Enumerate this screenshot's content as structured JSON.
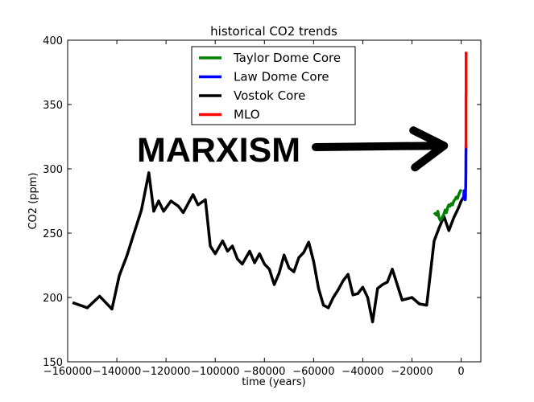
{
  "chart_data": {
    "type": "line",
    "title": "historical CO2 trends",
    "xlabel": "time (years)",
    "ylabel": "CO2 (ppm)",
    "xlim": [
      -160000,
      8000
    ],
    "ylim": [
      150,
      400
    ],
    "xticks": [
      -160000,
      -140000,
      -120000,
      -100000,
      -80000,
      -60000,
      -40000,
      -20000,
      0
    ],
    "xtick_labels": [
      "−160000",
      "−140000",
      "−120000",
      "−100000",
      "−80000",
      "−60000",
      "−40000",
      "−20000",
      "0"
    ],
    "yticks": [
      150,
      200,
      250,
      300,
      350,
      400
    ],
    "ytick_labels": [
      "150",
      "200",
      "250",
      "300",
      "350",
      "400"
    ],
    "grid": false,
    "legend_position": "top-center",
    "series": [
      {
        "name": "Taylor Dome Core",
        "color": "#008000",
        "x": [
          -11000,
          -10000,
          -9500,
          -9000,
          -8500,
          -8000,
          -7500,
          -7000,
          -6500,
          -6000,
          -5500,
          -5000,
          -4500,
          -4000,
          -3500,
          -3000,
          -2500,
          -2000,
          -1500,
          -1000,
          -500,
          0
        ],
        "y": [
          266,
          264,
          267,
          262,
          260,
          261,
          263,
          265,
          268,
          266,
          270,
          272,
          271,
          273,
          272,
          275,
          276,
          278,
          277,
          280,
          282,
          284
        ]
      },
      {
        "name": "Law Dome Core",
        "color": "#0000ff",
        "x": [
          1000,
          1100,
          1200,
          1300,
          1400,
          1500,
          1600,
          1700,
          1750,
          1800,
          1850,
          1900,
          1950,
          1960,
          1970,
          1978
        ],
        "y": [
          276,
          280,
          283,
          280,
          280,
          278,
          276,
          277,
          278,
          284,
          286,
          296,
          311,
          315,
          318,
          317
        ]
      },
      {
        "name": "Vostok Core",
        "color": "#000000",
        "x": [
          -158000,
          -152000,
          -147000,
          -142000,
          -139000,
          -136000,
          -133000,
          -130000,
          -127000,
          -125000,
          -123000,
          -121000,
          -118000,
          -115000,
          -113000,
          -111000,
          -109000,
          -107000,
          -104000,
          -102000,
          -100000,
          -97000,
          -95000,
          -93000,
          -91000,
          -89000,
          -86000,
          -84000,
          -82000,
          -80000,
          -78000,
          -76000,
          -74000,
          -72000,
          -70000,
          -68000,
          -66000,
          -64000,
          -62000,
          -60000,
          -58000,
          -56000,
          -54000,
          -52000,
          -50000,
          -48000,
          -46000,
          -44000,
          -42000,
          -40000,
          -38000,
          -36000,
          -34000,
          -32000,
          -30000,
          -28000,
          -24000,
          -20000,
          -17000,
          -14000,
          -11000,
          -9000,
          -7000,
          -5000,
          -3000,
          -1000,
          0,
          1000
        ],
        "y": [
          196,
          192,
          201,
          191,
          217,
          232,
          250,
          268,
          297,
          267,
          275,
          267,
          275,
          271,
          266,
          273,
          280,
          272,
          276,
          240,
          234,
          244,
          236,
          240,
          230,
          226,
          236,
          227,
          234,
          226,
          222,
          210,
          219,
          233,
          223,
          220,
          231,
          235,
          243,
          228,
          207,
          194,
          192,
          200,
          206,
          213,
          218,
          202,
          203,
          208,
          200,
          181,
          207,
          210,
          212,
          222,
          198,
          200,
          195,
          194,
          244,
          254,
          263,
          252,
          262,
          270,
          275,
          278
        ]
      },
      {
        "name": "MLO",
        "color": "#ff0000",
        "x": [
          1959,
          1960,
          1965,
          1970,
          1975,
          1980,
          1985,
          1990,
          1995,
          2000,
          2005,
          2010,
          2011
        ],
        "y": [
          316,
          317,
          320,
          325,
          331,
          339,
          346,
          354,
          361,
          369,
          380,
          390,
          391
        ]
      }
    ],
    "annotations": [
      {
        "text": "MARXISM",
        "x": -130000,
        "y": 315,
        "arrow_to": [
          -7000,
          318
        ]
      }
    ]
  }
}
